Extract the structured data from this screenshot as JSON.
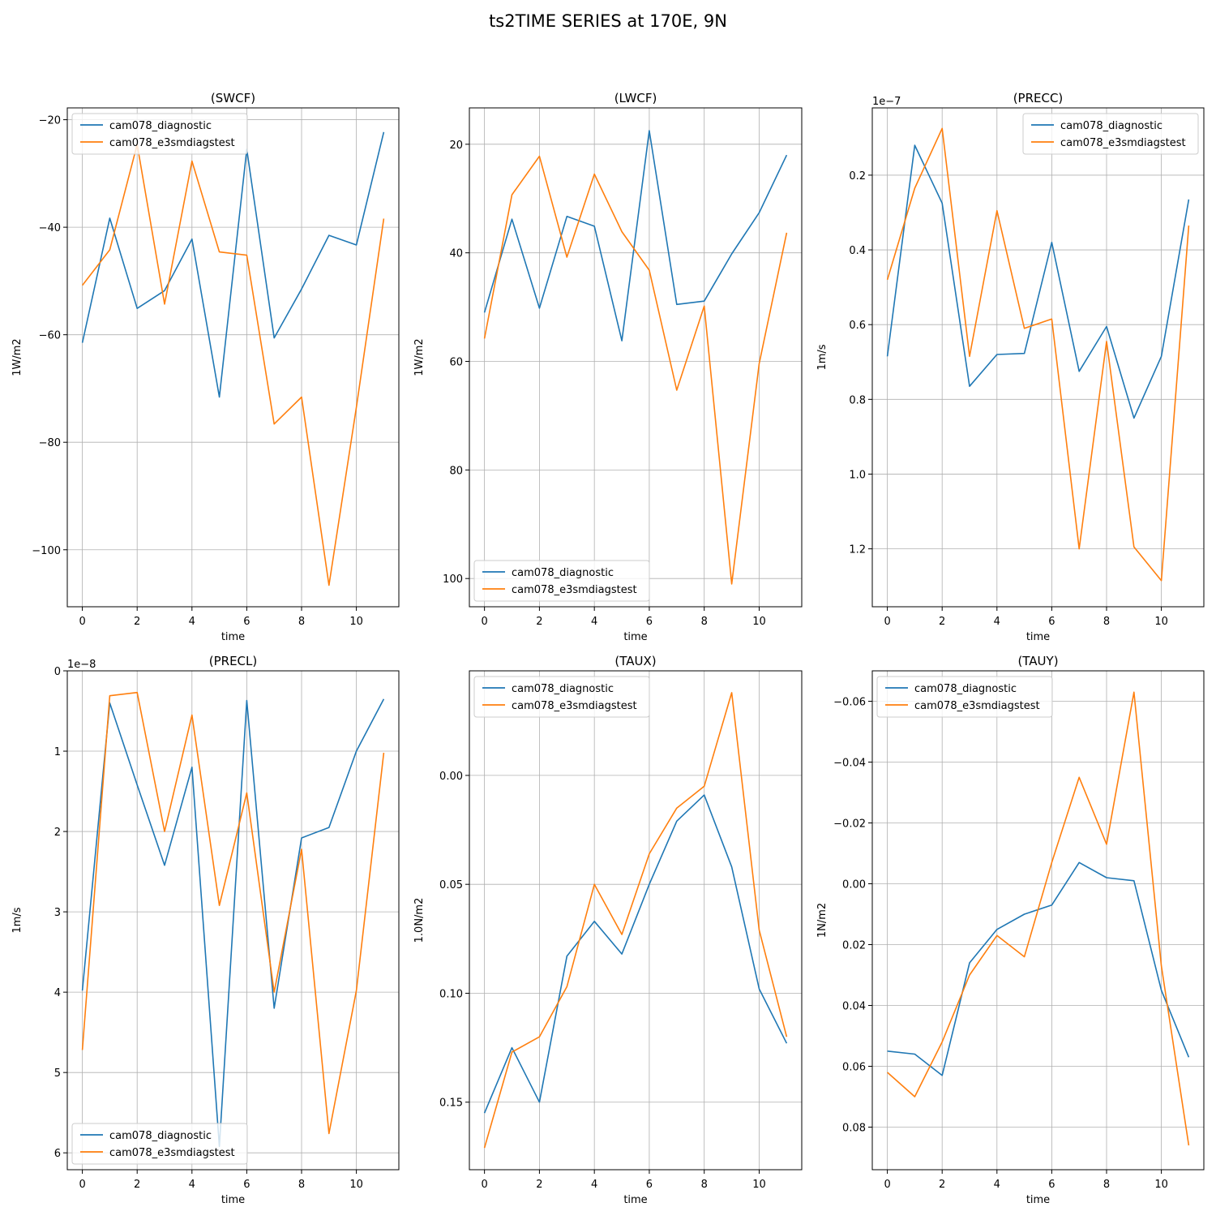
{
  "figure": {
    "title": "ts2TIME SERIES at 170E, 9N",
    "colors": {
      "cam078_diagnostic": "#1f77b4",
      "cam078_e3smdiagstest": "#ff7f0e"
    }
  },
  "chart_data": [
    {
      "type": "line",
      "title": "(SWCF)",
      "xlabel": "time",
      "ylabel": "1W/m2",
      "xlim": [
        -0.55,
        11.55
      ],
      "ylim": [
        -17.8,
        -110.6
      ],
      "y_inverted": true,
      "xticks": [
        0,
        2,
        4,
        6,
        8,
        10
      ],
      "yticks": [
        -100,
        -80,
        -60,
        -40,
        -20
      ],
      "ytick_labels": [
        "−100",
        "−80",
        "−60",
        "−40",
        "−20"
      ],
      "offset_text": "",
      "grid": true,
      "legend": "upper left",
      "x": [
        0,
        1,
        2,
        3,
        4,
        5,
        6,
        7,
        8,
        9,
        10,
        11
      ],
      "series": [
        {
          "name": "cam078_diagnostic",
          "color": "#1f77b4",
          "values": [
            -61.5,
            -38.3,
            -55.1,
            -51.8,
            -42.2,
            -71.6,
            -25.5,
            -60.6,
            -51.5,
            -41.5,
            -43.3,
            -22.3
          ]
        },
        {
          "name": "cam078_e3smdiagstest",
          "color": "#ff7f0e",
          "values": [
            -50.8,
            -44.2,
            -24.6,
            -54.3,
            -27.7,
            -44.6,
            -45.2,
            -76.6,
            -71.6,
            -106.6,
            -73.5,
            -38.4
          ]
        }
      ]
    },
    {
      "type": "line",
      "title": "(LWCF)",
      "xlabel": "time",
      "ylabel": "1W/m2",
      "xlim": [
        -0.55,
        11.55
      ],
      "ylim": [
        13.3,
        105.2
      ],
      "y_inverted": true,
      "xticks": [
        0,
        2,
        4,
        6,
        8,
        10
      ],
      "yticks": [
        20,
        40,
        60,
        80,
        100
      ],
      "ytick_labels": [
        "20",
        "40",
        "60",
        "80",
        "100"
      ],
      "offset_text": "",
      "grid": true,
      "legend": "lower left",
      "x": [
        0,
        1,
        2,
        3,
        4,
        5,
        6,
        7,
        8,
        9,
        10,
        11
      ],
      "series": [
        {
          "name": "cam078_diagnostic",
          "color": "#1f77b4",
          "values": [
            51.0,
            33.8,
            50.2,
            33.3,
            35.1,
            56.2,
            17.5,
            49.5,
            48.9,
            40.2,
            32.6,
            22.0
          ]
        },
        {
          "name": "cam078_e3smdiagstest",
          "color": "#ff7f0e",
          "values": [
            55.8,
            29.3,
            22.2,
            40.8,
            25.5,
            36.1,
            43.2,
            65.3,
            49.8,
            101.0,
            60.4,
            36.3
          ]
        }
      ]
    },
    {
      "type": "line",
      "title": "(PRECC)",
      "xlabel": "time",
      "ylabel": "1m/s",
      "xlim": [
        -0.55,
        11.55
      ],
      "ylim": [
        0.02,
        1.355
      ],
      "y_inverted": true,
      "xticks": [
        0,
        2,
        4,
        6,
        8,
        10
      ],
      "yticks": [
        0.2,
        0.4,
        0.6,
        0.8,
        1.0,
        1.2
      ],
      "ytick_labels": [
        "0.2",
        "0.4",
        "0.6",
        "0.8",
        "1.0",
        "1.2"
      ],
      "offset_text": "1e−7",
      "grid": true,
      "legend": "upper right",
      "x": [
        0,
        1,
        2,
        3,
        4,
        5,
        6,
        7,
        8,
        9,
        10,
        11
      ],
      "series": [
        {
          "name": "cam078_diagnostic",
          "color": "#1f77b4",
          "values": [
            0.685,
            0.12,
            0.275,
            0.765,
            0.68,
            0.677,
            0.38,
            0.725,
            0.605,
            0.85,
            0.685,
            0.265
          ]
        },
        {
          "name": "cam078_e3smdiagstest",
          "color": "#ff7f0e",
          "values": [
            0.48,
            0.235,
            0.075,
            0.685,
            0.295,
            0.61,
            0.585,
            1.2,
            0.645,
            1.195,
            1.285,
            0.335
          ]
        }
      ]
    },
    {
      "type": "line",
      "title": "(PRECL)",
      "xlabel": "time",
      "ylabel": "1m/s",
      "xlim": [
        -0.55,
        11.55
      ],
      "ylim": [
        0.0,
        6.21
      ],
      "y_inverted": true,
      "xticks": [
        0,
        2,
        4,
        6,
        8,
        10
      ],
      "yticks": [
        0,
        1,
        2,
        3,
        4,
        5,
        6
      ],
      "ytick_labels": [
        "0",
        "1",
        "2",
        "3",
        "4",
        "5",
        "6"
      ],
      "offset_text": "1e−8",
      "grid": true,
      "legend": "lower left",
      "x": [
        0,
        1,
        2,
        3,
        4,
        5,
        6,
        7,
        8,
        9,
        10,
        11
      ],
      "series": [
        {
          "name": "cam078_diagnostic",
          "color": "#1f77b4",
          "values": [
            3.98,
            0.4,
            1.42,
            2.42,
            1.2,
            5.92,
            0.37,
            4.2,
            2.08,
            1.95,
            1.0,
            0.35
          ]
        },
        {
          "name": "cam078_e3smdiagstest",
          "color": "#ff7f0e",
          "values": [
            4.72,
            0.31,
            0.27,
            2.0,
            0.55,
            2.92,
            1.52,
            4.0,
            2.22,
            5.76,
            3.98,
            1.02
          ]
        }
      ]
    },
    {
      "type": "line",
      "title": "(TAUX)",
      "xlabel": "time",
      "ylabel": "1.0N/m2",
      "xlim": [
        -0.55,
        11.55
      ],
      "ylim": [
        -0.048,
        0.181
      ],
      "y_inverted": true,
      "xticks": [
        0,
        2,
        4,
        6,
        8,
        10
      ],
      "yticks": [
        0.0,
        0.05,
        0.1,
        0.15
      ],
      "ytick_labels": [
        "0.00",
        "0.05",
        "0.10",
        "0.15"
      ],
      "offset_text": "",
      "grid": true,
      "legend": "upper left",
      "x": [
        0,
        1,
        2,
        3,
        4,
        5,
        6,
        7,
        8,
        9,
        10,
        11
      ],
      "series": [
        {
          "name": "cam078_diagnostic",
          "color": "#1f77b4",
          "values": [
            0.155,
            0.125,
            0.15,
            0.083,
            0.067,
            0.082,
            0.05,
            0.021,
            0.009,
            0.042,
            0.098,
            0.123
          ]
        },
        {
          "name": "cam078_e3smdiagstest",
          "color": "#ff7f0e",
          "values": [
            0.171,
            0.127,
            0.12,
            0.097,
            0.05,
            0.073,
            0.036,
            0.015,
            0.005,
            -0.038,
            0.071,
            0.12
          ]
        }
      ]
    },
    {
      "type": "line",
      "title": "(TAUY)",
      "xlabel": "time",
      "ylabel": "1N/m2",
      "xlim": [
        -0.55,
        11.55
      ],
      "ylim": [
        -0.07,
        0.094
      ],
      "y_inverted": true,
      "xticks": [
        0,
        2,
        4,
        6,
        8,
        10
      ],
      "yticks": [
        -0.06,
        -0.04,
        -0.02,
        0.0,
        0.02,
        0.04,
        0.06,
        0.08
      ],
      "ytick_labels": [
        "−0.06",
        "−0.04",
        "−0.02",
        "0.00",
        "0.02",
        "0.04",
        "0.06",
        "0.08"
      ],
      "offset_text": "",
      "grid": true,
      "legend": "upper left",
      "x": [
        0,
        1,
        2,
        3,
        4,
        5,
        6,
        7,
        8,
        9,
        10,
        11
      ],
      "series": [
        {
          "name": "cam078_diagnostic",
          "color": "#1f77b4",
          "values": [
            0.055,
            0.056,
            0.063,
            0.026,
            0.015,
            0.01,
            0.007,
            -0.007,
            -0.002,
            -0.001,
            0.035,
            0.057
          ]
        },
        {
          "name": "cam078_e3smdiagstest",
          "color": "#ff7f0e",
          "values": [
            0.062,
            0.07,
            0.052,
            0.03,
            0.017,
            0.024,
            -0.007,
            -0.035,
            -0.013,
            -0.063,
            0.027,
            0.086
          ]
        }
      ]
    }
  ]
}
